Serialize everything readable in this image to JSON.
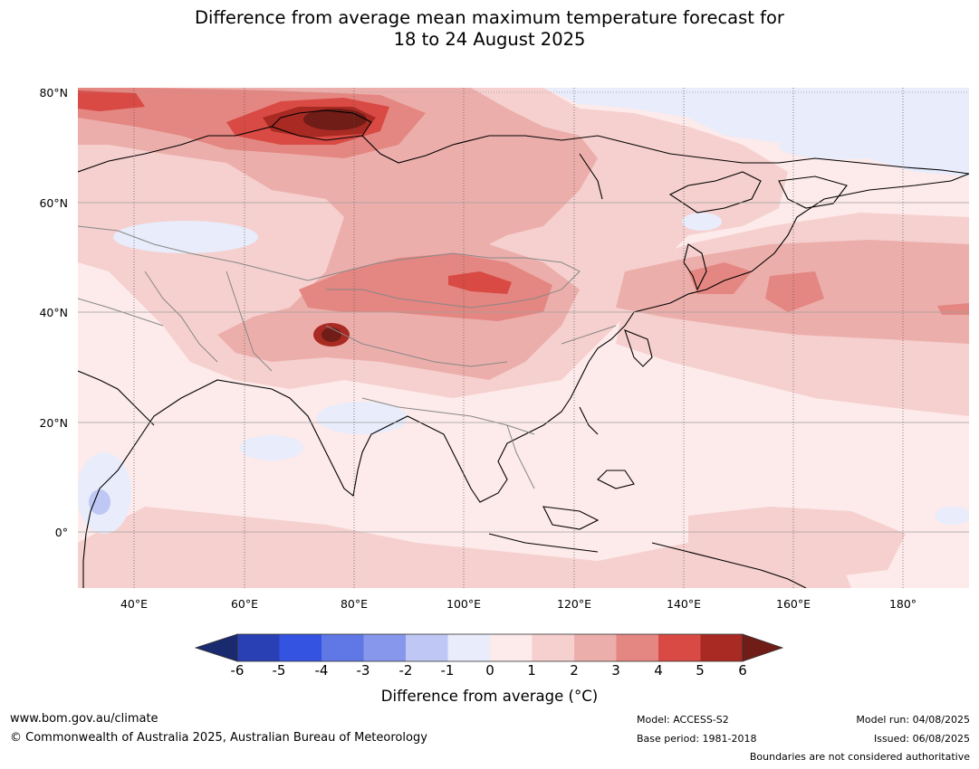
{
  "title": {
    "line1": "Difference from average mean maximum temperature forecast for",
    "line2": "18 to 24 August 2025"
  },
  "map": {
    "lat_labels": [
      "80°N",
      "60°N",
      "40°N",
      "20°N",
      "0°"
    ],
    "lon_labels": [
      "40°E",
      "60°E",
      "80°E",
      "100°E",
      "120°E",
      "140°E",
      "160°E",
      "180°"
    ]
  },
  "colorbar": {
    "ticks": [
      "-6",
      "-5",
      "-4",
      "-3",
      "-2",
      "-1",
      "0",
      "1",
      "2",
      "3",
      "4",
      "5",
      "6"
    ],
    "label": "Difference from average (°C)",
    "colors": {
      "below_-6": "#1a2a6e",
      "-6_-5": "#2840b4",
      "-5_-4": "#3453e0",
      "-4_-3": "#5f78e6",
      "-3_-2": "#8797ec",
      "-2_-1": "#bfc8f4",
      "-1_0": "#e8ecfb",
      "0_1": "#fdeaea",
      "1_2": "#f5d0ce",
      "2_3": "#ecaeab",
      "3_4": "#e48681",
      "4_5": "#d84a43",
      "5_6": "#a82a23",
      "above_6": "#701c17"
    }
  },
  "footer": {
    "url": "www.bom.gov.au/climate",
    "copyright": "© Commonwealth of Australia 2025, Australian Bureau of Meteorology",
    "model": "Model: ACCESS-S2",
    "base_period": "Base period: 1981-2018",
    "model_run": "Model run: 04/08/2025",
    "issued": "Issued: 06/08/2025",
    "disclaimer": "Boundaries are not considered authoritative"
  }
}
